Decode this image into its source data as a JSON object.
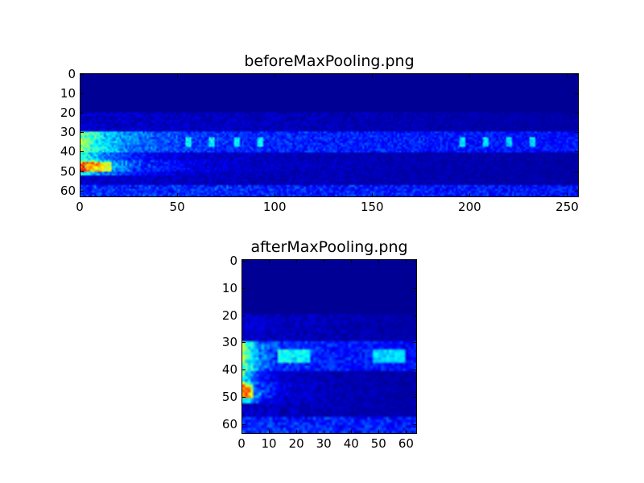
{
  "chart_data": [
    {
      "type": "heatmap",
      "title": "beforeMaxPooling.png",
      "shape": [
        64,
        256
      ],
      "colormap": "jet",
      "xlim": [
        0,
        256
      ],
      "ylim": [
        64,
        0
      ],
      "xticks": [
        "0",
        "50",
        "100",
        "150",
        "200",
        "250"
      ],
      "yticks": [
        "0",
        "10",
        "20",
        "30",
        "40",
        "50",
        "60"
      ],
      "grid": false
    },
    {
      "type": "heatmap",
      "title": "afterMaxPooling.png",
      "shape": [
        64,
        64
      ],
      "colormap": "jet",
      "xlim": [
        0,
        64
      ],
      "ylim": [
        64,
        0
      ],
      "xticks": [
        "0",
        "10",
        "20",
        "30",
        "40",
        "50",
        "60"
      ],
      "yticks": [
        "0",
        "10",
        "20",
        "30",
        "40",
        "50",
        "60"
      ],
      "grid": false
    }
  ]
}
